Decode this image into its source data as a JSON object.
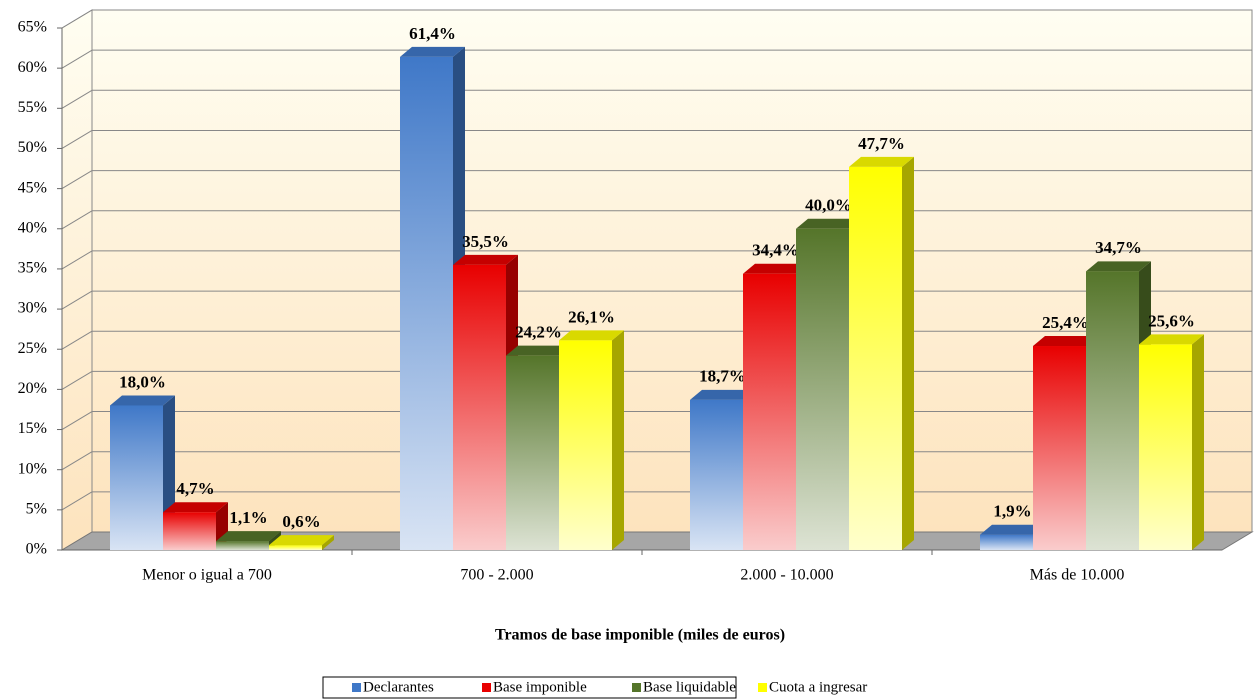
{
  "chart_data": {
    "type": "bar3d",
    "x_label": "Tramos de base imponible (miles de euros)",
    "categories": [
      "Menor o igual a 700",
      "700 - 2.000",
      "2.000 - 10.000",
      "Más de 10.000"
    ],
    "series": [
      {
        "name": "Declarantes",
        "color": "#3f78c8",
        "values": [
          18.0,
          61.4,
          18.7,
          1.9
        ],
        "value_labels": [
          "18,0%",
          "61,4%",
          "18,7%",
          "1,9%"
        ]
      },
      {
        "name": "Base imponible",
        "color": "#e80000",
        "values": [
          4.7,
          35.5,
          34.4,
          25.4
        ],
        "value_labels": [
          "4,7%",
          "35,5%",
          "34,4%",
          "25,4%"
        ]
      },
      {
        "name": "Base liquidable",
        "color": "#55752a",
        "values": [
          1.1,
          24.2,
          40.0,
          34.7
        ],
        "value_labels": [
          "1,1%",
          "24,2%",
          "40,0%",
          "34,7%"
        ]
      },
      {
        "name": "Cuota a ingresar",
        "color": "#ffff00",
        "values": [
          0.6,
          26.1,
          47.7,
          25.6
        ],
        "value_labels": [
          "0,6%",
          "26,1%",
          "47,7%",
          "25,6%"
        ]
      }
    ],
    "ylim": [
      0,
      65
    ],
    "yticks": [
      {
        "value": 0,
        "label": "0%"
      },
      {
        "value": 5,
        "label": "5%"
      },
      {
        "value": 10,
        "label": "10%"
      },
      {
        "value": 15,
        "label": "15%"
      },
      {
        "value": 20,
        "label": "20%"
      },
      {
        "value": 25,
        "label": "25%"
      },
      {
        "value": 30,
        "label": "30%"
      },
      {
        "value": 35,
        "label": "35%"
      },
      {
        "value": 40,
        "label": "40%"
      },
      {
        "value": 45,
        "label": "45%"
      },
      {
        "value": 50,
        "label": "50%"
      },
      {
        "value": 55,
        "label": "55%"
      },
      {
        "value": 60,
        "label": "60%"
      },
      {
        "value": 65,
        "label": "65%"
      }
    ],
    "grid": true,
    "legend": "bottom"
  }
}
